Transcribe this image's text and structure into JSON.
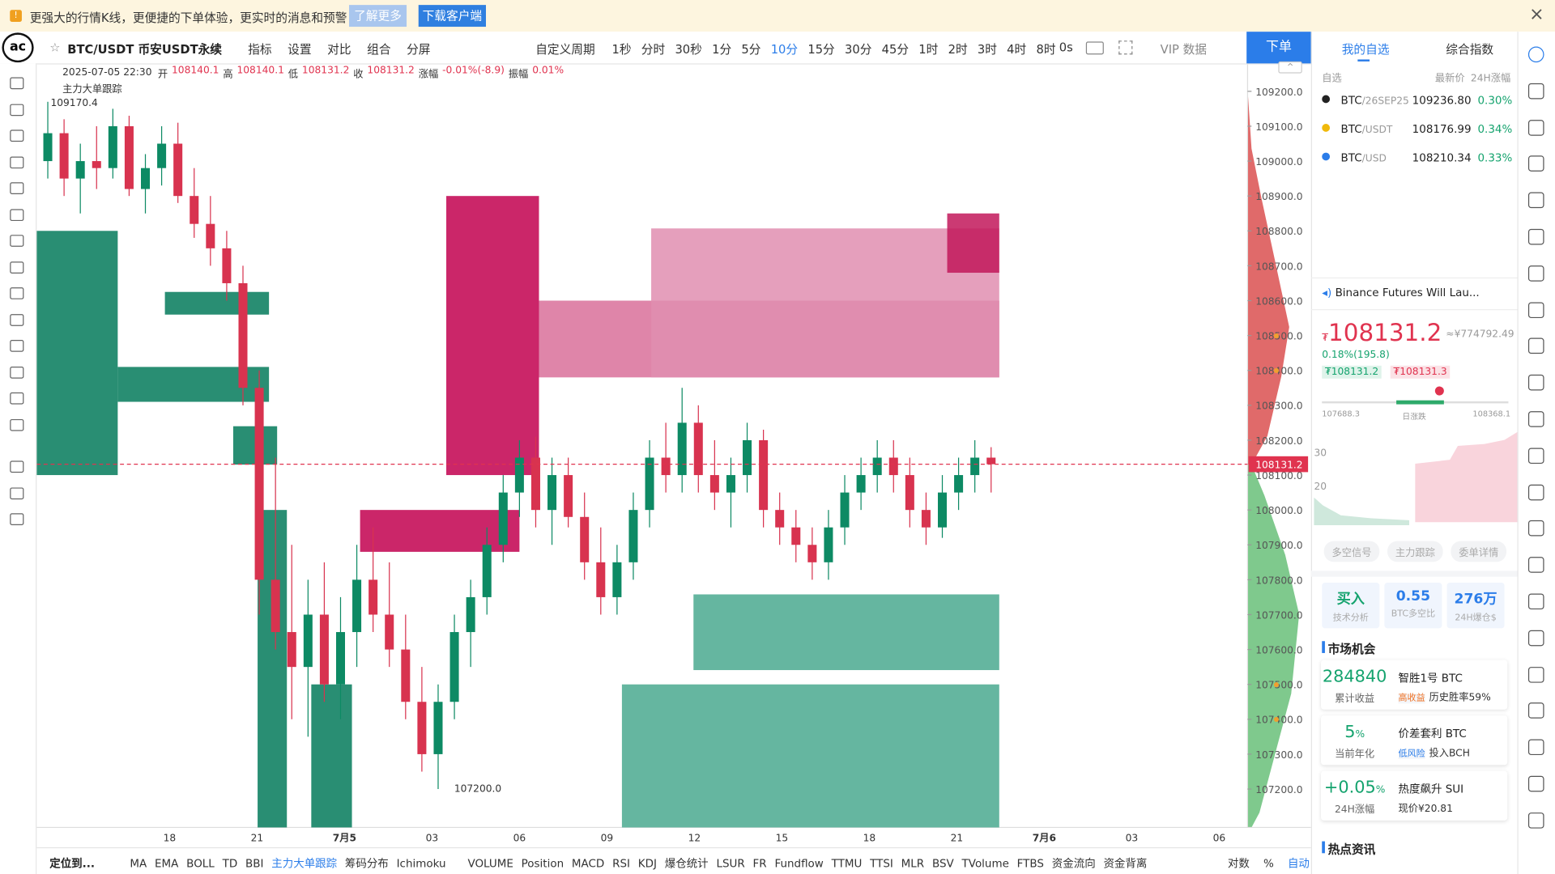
{
  "banner": {
    "message": "更强大的行情K线，更便捷的下单体验，更实时的消息和预警",
    "learn_more": "了解更多",
    "download": "下载客户端"
  },
  "toolbar": {
    "symbol": "BTC/USDT 币安USDT永续",
    "menu": [
      "指标",
      "设置",
      "对比",
      "组合",
      "分屏"
    ],
    "custom_period": "自定义周期",
    "intervals": [
      "1秒",
      "分时",
      "30秒",
      "1分",
      "5分",
      "10分",
      "15分",
      "30分",
      "45分",
      "1时",
      "2时",
      "3时",
      "4时",
      "8时"
    ],
    "active_interval": 5,
    "timer": "0s",
    "vip": "VIP 数据",
    "order": "下单"
  },
  "chart": {
    "datetime": "2025-07-05 22:30",
    "info": [
      {
        "label": "开",
        "value": "108140.1"
      },
      {
        "label": "高",
        "value": "108140.1"
      },
      {
        "label": "低",
        "value": "108131.2"
      },
      {
        "label": "收",
        "value": "108131.2"
      },
      {
        "label": "涨幅",
        "value": "-0.01%(-8.9)"
      },
      {
        "label": "振幅",
        "value": "0.01%"
      }
    ],
    "indicator": "主力大单跟踪",
    "high_marker": "109170.4",
    "low_marker": "107200.0",
    "up_color": "#0d8a64",
    "down_color": "#d8334f",
    "ylim": [
      107090,
      109280
    ],
    "yticks": [
      {
        "value": 107200,
        "label": "107200.0"
      },
      {
        "value": 107300,
        "label": "107300.0"
      },
      {
        "value": 107400,
        "label": "107400.0"
      },
      {
        "value": 107500,
        "label": "107500.0"
      },
      {
        "value": 107600,
        "label": "107600.0"
      },
      {
        "value": 107700,
        "label": "107700.0"
      },
      {
        "value": 107800,
        "label": "107800.0"
      },
      {
        "value": 107900,
        "label": "107900.0"
      },
      {
        "value": 108000,
        "label": "108000.0"
      },
      {
        "value": 108100,
        "label": "108100.0"
      },
      {
        "value": 108200,
        "label": "108200.0"
      },
      {
        "value": 108300,
        "label": "108300.0"
      },
      {
        "value": 108400,
        "label": "108400.0"
      },
      {
        "value": 108500,
        "label": "108500.0"
      },
      {
        "value": 108600,
        "label": "108600.0"
      },
      {
        "value": 108700,
        "label": "108700.0"
      },
      {
        "value": 108800,
        "label": "108800.0"
      },
      {
        "value": 108900,
        "label": "108900.0"
      },
      {
        "value": 109000,
        "label": "109000.0"
      },
      {
        "value": 109100,
        "label": "109100.0"
      },
      {
        "value": 109200,
        "label": "109200.0"
      }
    ],
    "last_price": {
      "value": 108131.2,
      "label": "108131.2"
    },
    "xticks": [
      "18",
      "21",
      "7月5",
      "03",
      "06",
      "09",
      "12",
      "15",
      "18",
      "21",
      "7月6",
      "03",
      "06"
    ],
    "candles": [
      [
        109000,
        109170,
        108950,
        109080
      ],
      [
        109080,
        109120,
        108900,
        108950
      ],
      [
        108950,
        109050,
        108850,
        109000
      ],
      [
        109000,
        109100,
        108920,
        108980
      ],
      [
        108980,
        109150,
        108950,
        109100
      ],
      [
        109100,
        109130,
        108900,
        108920
      ],
      [
        108920,
        109020,
        108850,
        108980
      ],
      [
        108980,
        109100,
        108930,
        109050
      ],
      [
        109050,
        109110,
        108880,
        108900
      ],
      [
        108900,
        108980,
        108780,
        108820
      ],
      [
        108820,
        108900,
        108700,
        108750
      ],
      [
        108750,
        108800,
        108600,
        108650
      ],
      [
        108650,
        108700,
        108300,
        108350
      ],
      [
        108350,
        108400,
        107700,
        107800
      ],
      [
        107800,
        108150,
        107600,
        107650
      ],
      [
        107650,
        107900,
        107400,
        107550
      ],
      [
        107550,
        107800,
        107350,
        107700
      ],
      [
        107700,
        107850,
        107450,
        107500
      ],
      [
        107500,
        107750,
        107400,
        107650
      ],
      [
        107650,
        107900,
        107550,
        107800
      ],
      [
        107800,
        107950,
        107650,
        107700
      ],
      [
        107700,
        107850,
        107550,
        107600
      ],
      [
        107600,
        107700,
        107400,
        107450
      ],
      [
        107450,
        107550,
        107250,
        107300
      ],
      [
        107300,
        107500,
        107200,
        107450
      ],
      [
        107450,
        107700,
        107400,
        107650
      ],
      [
        107650,
        107800,
        107550,
        107750
      ],
      [
        107750,
        107950,
        107700,
        107900
      ],
      [
        107900,
        108100,
        107850,
        108050
      ],
      [
        108050,
        108200,
        107980,
        108150
      ],
      [
        108150,
        108210,
        107950,
        108000
      ],
      [
        108000,
        108150,
        107900,
        108100
      ],
      [
        108100,
        108150,
        107950,
        107980
      ],
      [
        107980,
        108050,
        107800,
        107850
      ],
      [
        107850,
        107950,
        107700,
        107750
      ],
      [
        107750,
        107900,
        107700,
        107850
      ],
      [
        107850,
        108050,
        107800,
        108000
      ],
      [
        108000,
        108200,
        107950,
        108150
      ],
      [
        108150,
        108250,
        108050,
        108100
      ],
      [
        108100,
        108350,
        108050,
        108250
      ],
      [
        108250,
        108300,
        108050,
        108100
      ],
      [
        108100,
        108200,
        108000,
        108050
      ],
      [
        108050,
        108150,
        107950,
        108100
      ],
      [
        108100,
        108250,
        108050,
        108200
      ],
      [
        108200,
        108230,
        107950,
        108000
      ],
      [
        108000,
        108050,
        107900,
        107950
      ],
      [
        107950,
        108000,
        107850,
        107900
      ],
      [
        107900,
        107950,
        107800,
        107850
      ],
      [
        107850,
        108000,
        107800,
        107950
      ],
      [
        107950,
        108100,
        107900,
        108050
      ],
      [
        108050,
        108150,
        108000,
        108100
      ],
      [
        108100,
        108200,
        108050,
        108150
      ],
      [
        108150,
        108200,
        108050,
        108100
      ],
      [
        108100,
        108150,
        107950,
        108000
      ],
      [
        108000,
        108050,
        107900,
        107950
      ],
      [
        107950,
        108100,
        107920,
        108050
      ],
      [
        108050,
        108150,
        108000,
        108100
      ],
      [
        108100,
        108200,
        108050,
        108150
      ],
      [
        108150,
        108180,
        108050,
        108131.2
      ]
    ],
    "blocks": [
      {
        "from": -0.2,
        "to": 4.8,
        "low": 108100,
        "high": 108800,
        "color": "#037a5a"
      },
      {
        "from": 4.8,
        "to": 14.1,
        "low": 108310,
        "high": 108410,
        "color": "#037a5a"
      },
      {
        "from": 7.7,
        "to": 14.1,
        "low": 108560,
        "high": 108625,
        "color": "#037a5a"
      },
      {
        "from": 11.9,
        "to": 14.6,
        "low": 108130,
        "high": 108240,
        "color": "#037a5a"
      },
      {
        "from": 13.4,
        "to": 15.2,
        "low": 107090,
        "high": 108000,
        "color": "#037a5a"
      },
      {
        "from": 16.7,
        "to": 19.2,
        "low": 107090,
        "high": 107500,
        "color": "#037a5a"
      },
      {
        "from": 25,
        "to": 30.7,
        "low": 108100,
        "high": 108900,
        "color": "#c2004f"
      },
      {
        "from": 19.7,
        "to": 29.5,
        "low": 107880,
        "high": 108000,
        "color": "#c2004f"
      },
      {
        "from": 30.7,
        "to": 59,
        "low": 108380,
        "high": 108600,
        "color": "#d9709a"
      },
      {
        "from": 37.6,
        "to": 59,
        "low": 108380,
        "high": 108807,
        "color": "#e08eb0"
      },
      {
        "from": 55.8,
        "to": 59,
        "low": 108680,
        "high": 108850,
        "color": "#c2185b"
      },
      {
        "from": 40.2,
        "to": 59,
        "low": 107541,
        "high": 107758,
        "color": "#4aa98f"
      },
      {
        "from": 35.8,
        "to": 59,
        "low": 107090,
        "high": 107500,
        "color": "#4aa98f"
      }
    ]
  },
  "bottom_bar": {
    "locate": "定位到...",
    "indicators": [
      "MA",
      "EMA",
      "BOLL",
      "TD",
      "BBI",
      "主力大单跟踪",
      "筹码分布",
      "Ichimoku",
      "VOLUME",
      "Position",
      "MACD",
      "RSI",
      "KDJ",
      "爆仓统计",
      "LSUR",
      "FR",
      "Fundflow",
      "TTMU",
      "TTSI",
      "MLR",
      "BSV",
      "TVolume",
      "FTBS",
      "资金流向",
      "资金背离"
    ],
    "active_indicator": 5,
    "options": [
      "对数",
      "%",
      "自动"
    ]
  },
  "side_panel": {
    "tabs": [
      "我的自选",
      "综合指数"
    ],
    "watch_header": {
      "group": "自选",
      "price": "最新价",
      "change": "24H涨幅"
    },
    "watchlist": [
      {
        "base": "BTC",
        "quote": "/26SEP25",
        "price": "109236.80",
        "change": "0.30%"
      },
      {
        "base": "BTC",
        "quote": "/USDT",
        "price": "108176.99",
        "change": "0.34%"
      },
      {
        "base": "BTC",
        "quote": "/USD",
        "price": "108210.34",
        "change": "0.33%"
      }
    ],
    "news": "Binance Futures Will Lau...",
    "price": {
      "currency": "₮",
      "value": "108131.2",
      "cny": "≈¥774792.49",
      "change": "0.18%(195.8)",
      "bid": "₮108131.2",
      "ask": "₮108131.3"
    },
    "range": {
      "low": "107688.3",
      "label": "日涨跌",
      "high": "108368.1"
    },
    "mini_axis": [
      "30",
      "20"
    ],
    "buttons": [
      "多空信号",
      "主力跟踪",
      "委单详情"
    ],
    "stats": [
      {
        "value": "买入",
        "label": "技术分析"
      },
      {
        "value": "0.55",
        "label": "BTC多空比"
      },
      {
        "value": "276万",
        "label": "24H爆仓$"
      }
    ],
    "opportunity_title": "市场机会",
    "opportunities": [
      {
        "value": "284840",
        "unit": "",
        "label": "累计收益",
        "name": "智胜1号 BTC",
        "tag": "高收益",
        "detail": "历史胜率59%"
      },
      {
        "value": "5",
        "unit": "%",
        "label": "当前年化",
        "name": "价差套利 BTC",
        "tag": "低风险",
        "detail": "投入BCH"
      },
      {
        "value": "+0.05",
        "unit": "%",
        "label": "24H涨幅",
        "name": "热度飙升 SUI",
        "tag": "",
        "detail": "现价¥20.81"
      }
    ],
    "hot_news_title": "热点资讯"
  }
}
